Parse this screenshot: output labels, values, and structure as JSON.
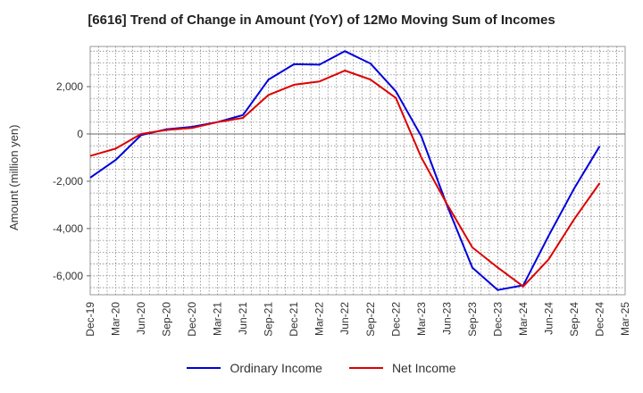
{
  "chart_data": {
    "type": "line",
    "title": "[6616]  Trend of Change in Amount (YoY) of 12Mo Moving Sum of Incomes",
    "xlabel": "",
    "ylabel": "Amount (million yen)",
    "ylim": [
      -6800,
      3700
    ],
    "yticks": [
      -6000,
      -4000,
      -2000,
      0,
      2000
    ],
    "ytick_labels": [
      "-6,000",
      "-4,000",
      "-2,000",
      "0",
      "2,000"
    ],
    "categories": [
      "Dec-19",
      "Mar-20",
      "Jun-20",
      "Sep-20",
      "Dec-20",
      "Mar-21",
      "Jun-21",
      "Sep-21",
      "Dec-21",
      "Mar-22",
      "Jun-22",
      "Sep-22",
      "Dec-22",
      "Mar-23",
      "Jun-23",
      "Sep-23",
      "Dec-23",
      "Mar-24",
      "Jun-24",
      "Sep-24",
      "Dec-24",
      "Mar-25"
    ],
    "grid": true,
    "legend_position": "bottom",
    "series": [
      {
        "name": "Ordinary Income",
        "color": "#0000dd",
        "values": [
          -1850,
          -1100,
          -50,
          200,
          300,
          500,
          800,
          2300,
          2950,
          2930,
          3500,
          2980,
          1800,
          -100,
          -3000,
          -5650,
          -6600,
          -6400,
          -4300,
          -2300,
          -520,
          null
        ]
      },
      {
        "name": "Net Income",
        "color": "#dd0000",
        "values": [
          -930,
          -620,
          0,
          170,
          250,
          500,
          680,
          1650,
          2080,
          2220,
          2680,
          2300,
          1520,
          -1000,
          -2950,
          -4800,
          -5650,
          -6450,
          -5300,
          -3600,
          -2080,
          null
        ]
      }
    ]
  }
}
